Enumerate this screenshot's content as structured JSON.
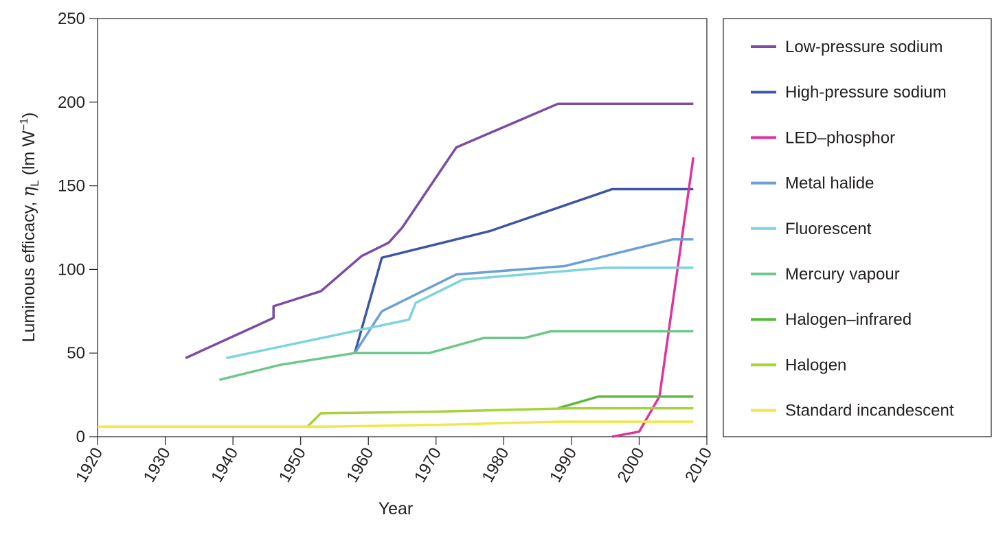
{
  "chart_data": {
    "type": "line",
    "xlabel": "Year",
    "ylabel": {
      "prefix": "Luminous efficacy, ",
      "symbol": "η",
      "subscript": "L",
      "unit_open": " (lm W",
      "unit_sup": "−1",
      "unit_close": ")"
    },
    "xlim": [
      1920,
      2010
    ],
    "ylim": [
      0,
      250
    ],
    "xticks": [
      "1920",
      "1930",
      "1940",
      "1950",
      "1960",
      "1970",
      "1980",
      "1990",
      "2000",
      "2010"
    ],
    "yticks": [
      "0",
      "50",
      "100",
      "150",
      "200",
      "250"
    ],
    "grid": false,
    "legend_placement": "right",
    "series": [
      {
        "name": "Low-pressure sodium",
        "color": "#7b4ba6",
        "x": [
          1933,
          1946,
          1946,
          1953,
          1959,
          1963,
          1965,
          1973,
          1988,
          2008
        ],
        "y": [
          47,
          71,
          78,
          87,
          108,
          116,
          125,
          173,
          199,
          199
        ]
      },
      {
        "name": "High-pressure sodium",
        "color": "#3c55a5",
        "x": [
          1958,
          1962,
          1978,
          1996,
          2008
        ],
        "y": [
          50,
          107,
          123,
          148,
          148
        ]
      },
      {
        "name": "LED–phosphor",
        "color": "#e0329c",
        "x": [
          1996,
          2000,
          2003,
          2008
        ],
        "y": [
          0,
          3,
          24,
          167
        ]
      },
      {
        "name": "Metal halide",
        "color": "#6a9fd8",
        "x": [
          1958,
          1962,
          1973,
          1989,
          2005,
          2008
        ],
        "y": [
          50,
          75,
          97,
          102,
          118,
          118
        ]
      },
      {
        "name": "Fluorescent",
        "color": "#7dd4df",
        "x": [
          1939,
          1966,
          1967,
          1974,
          1995,
          2008
        ],
        "y": [
          47,
          70,
          80,
          94,
          101,
          101
        ]
      },
      {
        "name": "Mercury vapour",
        "color": "#6cc888",
        "x": [
          1938,
          1947,
          1958,
          1969,
          1977,
          1983,
          1987,
          2008
        ],
        "y": [
          34,
          43,
          50,
          50,
          59,
          59,
          63,
          63
        ]
      },
      {
        "name": "Halogen–infrared",
        "color": "#58b73c",
        "x": [
          1988,
          1994,
          2008
        ],
        "y": [
          17,
          24,
          24
        ]
      },
      {
        "name": "Halogen",
        "color": "#a8d23a",
        "x": [
          1951,
          1953,
          1970,
          1990,
          2008
        ],
        "y": [
          6,
          14,
          15,
          17,
          17
        ]
      },
      {
        "name": "Standard incandescent",
        "color": "#efe74b",
        "x": [
          1920,
          1953,
          1970,
          1988,
          2008
        ],
        "y": [
          6,
          6,
          7,
          9,
          9
        ]
      }
    ]
  }
}
